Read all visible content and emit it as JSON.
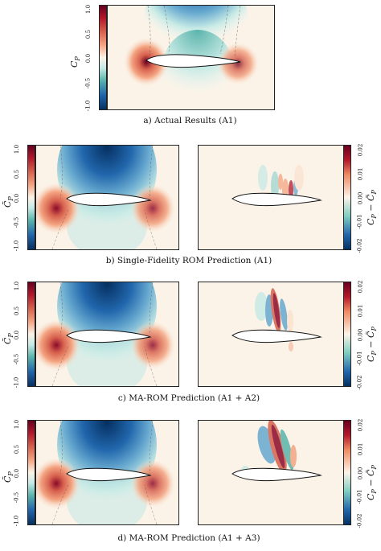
{
  "colorbar_ticks_cp": [
    "1.0",
    "0.5",
    "0.0",
    "-0.5",
    "-1.0"
  ],
  "colorbar_ticks_diff": [
    "0.02",
    "0.01",
    "0.00",
    "-0.01",
    "-0.02"
  ],
  "labels": {
    "cp": "C",
    "cp_sub": "P",
    "cp_tilde": "C̃",
    "diff": "C",
    "diff_mid": " − C̃"
  },
  "captions": {
    "a": "a) Actual Results (A1)",
    "b": "b) Single-Fidelity ROM Prediction (A1)",
    "c": "c) MA-ROM Prediction (A1 + A2)",
    "d": "d) MA-ROM Prediction (A1 + A3)"
  },
  "colors": {
    "positive": "#b2182b",
    "negative": "#2166ac",
    "neutral": "#fbf3e8"
  }
}
